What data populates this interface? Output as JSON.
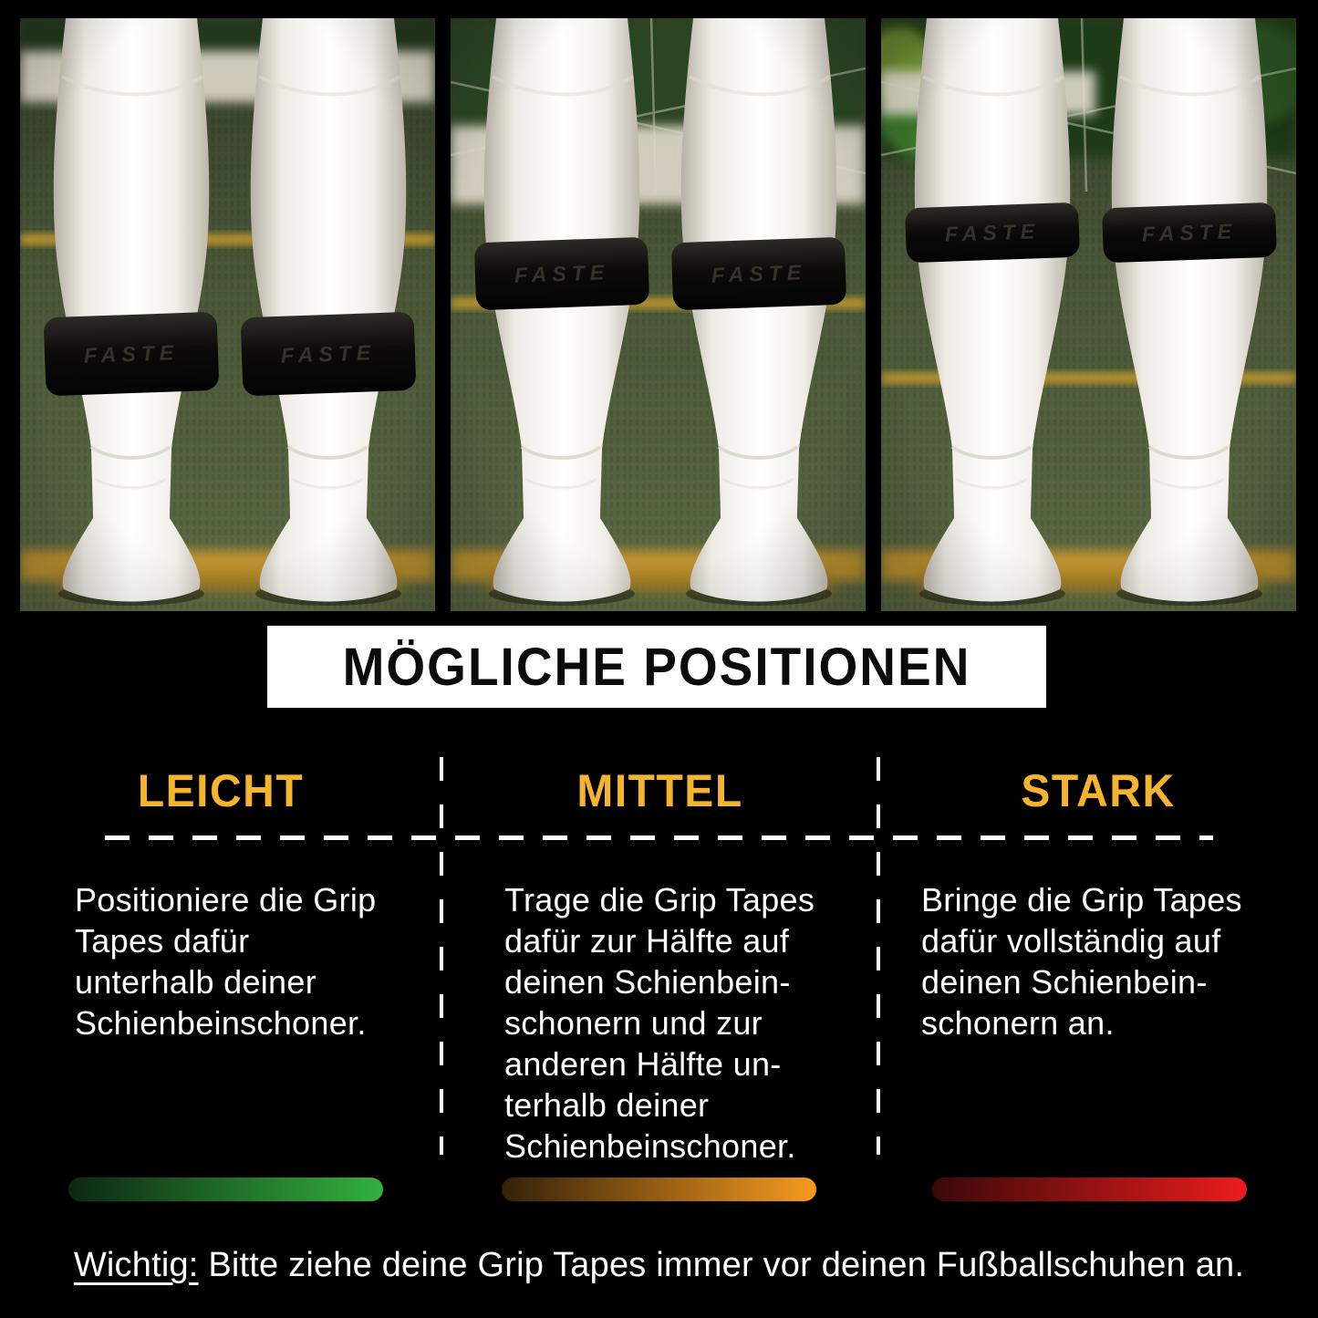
{
  "banner": {
    "title": "MÖGLICHE POSITIONEN"
  },
  "tape": {
    "brand_logo": "FASTE"
  },
  "photos": [
    {
      "id": "leicht",
      "description": "grip tape worn low, above the ankle"
    },
    {
      "id": "mittel",
      "description": "grip tape worn at mid shin"
    },
    {
      "id": "stark",
      "description": "grip tape worn high, below the calf"
    }
  ],
  "columns": [
    {
      "id": "leicht",
      "heading": "LEICHT",
      "body": "Positioniere die Grip\nTapes dafür\nunterhalb deiner\nSchienbeinschoner.",
      "bar_gradient": [
        "#0c2711",
        "#33b13e"
      ]
    },
    {
      "id": "mittel",
      "heading": "MITTEL",
      "body": "Trage die Grip Tapes\ndafür zur Hälfte auf\ndeinen Schienbein-\nschonern und zur\nanderen Hälfte un-\nterhalb deiner\nSchienbeinschoner.",
      "bar_gradient": [
        "#342108",
        "#f79b20"
      ]
    },
    {
      "id": "stark",
      "heading": "STARK",
      "body": "Bringe die Grip Tapes\ndafür vollständig auf\ndeinen Schienbein-\nschonern an.",
      "bar_gradient": [
        "#3b0808",
        "#ec1c1c"
      ]
    }
  ],
  "footer": {
    "label": "Wichtig:",
    "text": " Bitte ziehe deine Grip Tapes immer vor deinen Fußballschuhen an."
  },
  "colors": {
    "background": "#000000",
    "banner_bg": "#ffffff",
    "banner_text": "#0b0b0b",
    "accent_yellow": "#f5b42d",
    "body_text": "#ffffff",
    "divider": "#ffffff",
    "grass": "#45523a",
    "turf_line_yellow": "#c6972f",
    "tape_black": "#0c0b0a"
  }
}
